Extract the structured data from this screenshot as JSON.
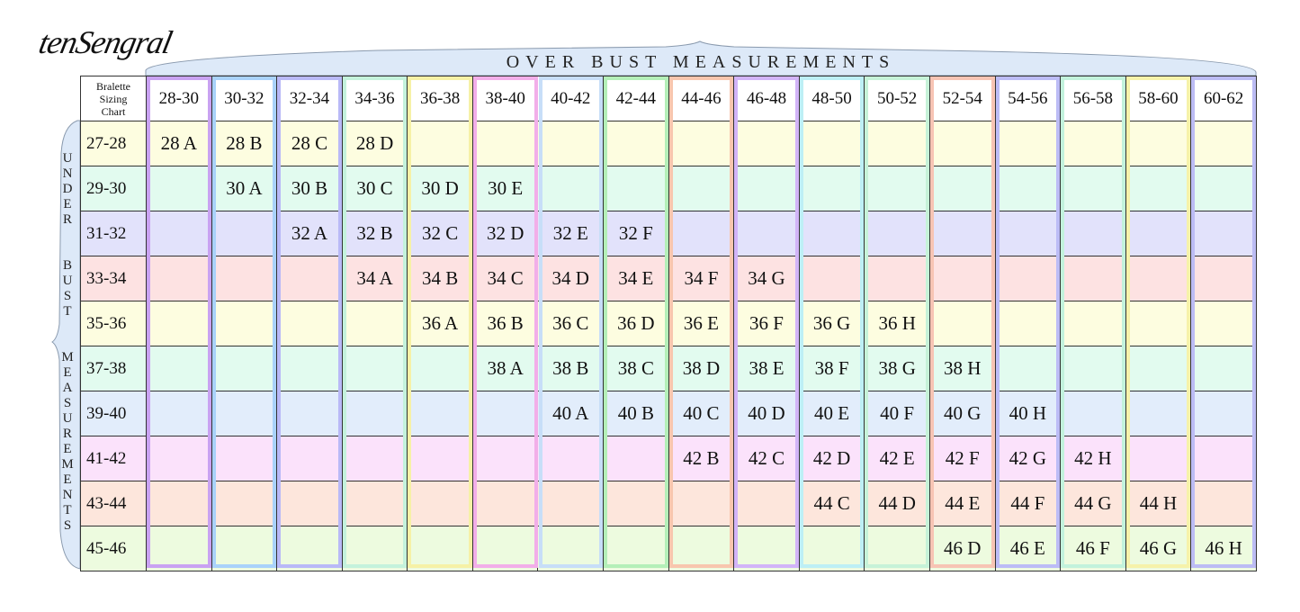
{
  "logo": "tenSengral",
  "over_label": "OVER BUST MEASUREMENTS",
  "under_label": "UNDER  BUST  MEASUREMENTS",
  "corner_label": [
    "Bralette",
    "Sizing",
    "Chart"
  ],
  "columns": [
    "28-30",
    "30-32",
    "32-34",
    "34-36",
    "36-38",
    "38-40",
    "40-42",
    "42-44",
    "44-46",
    "46-48",
    "48-50",
    "50-52",
    "52-54",
    "54-56",
    "56-58",
    "58-60",
    "60-62"
  ],
  "column_colors": [
    "#c9a2f2",
    "#a9d2fa",
    "#b9b9f7",
    "#c4f2dc",
    "#f6f1a6",
    "#f2aee9",
    "#c7def8",
    "#b4efb8",
    "#f8c6ae",
    "#d2b4f8",
    "#bdeff5",
    "#c6f2d8",
    "#f7c4b4",
    "#bcbcf6",
    "#c2f2dc",
    "#f6f2aa",
    "#bcbcf4"
  ],
  "rows": [
    {
      "label": "27-28",
      "color": "#fdfde0",
      "cells": [
        "28 A",
        "28 B",
        "28 C",
        "28 D",
        "",
        "",
        "",
        "",
        "",
        "",
        "",
        "",
        "",
        "",
        "",
        "",
        ""
      ]
    },
    {
      "label": "29-30",
      "color": "#e2fbef",
      "cells": [
        "",
        "30 A",
        "30 B",
        "30 C",
        "30 D",
        "30 E",
        "",
        "",
        "",
        "",
        "",
        "",
        "",
        "",
        "",
        "",
        ""
      ]
    },
    {
      "label": "31-32",
      "color": "#e2e2fb",
      "cells": [
        "",
        "",
        "32 A",
        "32 B",
        "32 C",
        "32 D",
        "32 E",
        "32 F",
        "",
        "",
        "",
        "",
        "",
        "",
        "",
        "",
        ""
      ]
    },
    {
      "label": "33-34",
      "color": "#fde2e2",
      "cells": [
        "",
        "",
        "",
        "34 A",
        "34 B",
        "34 C",
        "34 D",
        "34 E",
        "34 F",
        "34 G",
        "",
        "",
        "",
        "",
        "",
        "",
        ""
      ]
    },
    {
      "label": "35-36",
      "color": "#fdfde0",
      "cells": [
        "",
        "",
        "",
        "",
        "36 A",
        "36 B",
        "36 C",
        "36 D",
        "36 E",
        "36 F",
        "36 G",
        "36 H",
        "",
        "",
        "",
        "",
        ""
      ]
    },
    {
      "label": "37-38",
      "color": "#e2fbef",
      "cells": [
        "",
        "",
        "",
        "",
        "",
        "38 A",
        "38 B",
        "38 C",
        "38 D",
        "38 E",
        "38 F",
        "38 G",
        "38 H",
        "",
        "",
        "",
        ""
      ]
    },
    {
      "label": "39-40",
      "color": "#e2edfb",
      "cells": [
        "",
        "",
        "",
        "",
        "",
        "",
        "40 A",
        "40 B",
        "40 C",
        "40 D",
        "40 E",
        "40 F",
        "40 G",
        "40 H",
        "",
        "",
        ""
      ]
    },
    {
      "label": "41-42",
      "color": "#fbe2fb",
      "cells": [
        "",
        "",
        "",
        "",
        "",
        "",
        "",
        "",
        "42 B",
        "42 C",
        "42 D",
        "42 E",
        "42 F",
        "42 G",
        "42 H",
        "",
        ""
      ]
    },
    {
      "label": "43-44",
      "color": "#fde6dc",
      "cells": [
        "",
        "",
        "",
        "",
        "",
        "",
        "",
        "",
        "",
        "",
        "44 C",
        "44 D",
        "44 E",
        "44 F",
        "44 G",
        "44 H",
        ""
      ]
    },
    {
      "label": "45-46",
      "color": "#edfbdf",
      "cells": [
        "",
        "",
        "",
        "",
        "",
        "",
        "",
        "",
        "",
        "",
        "",
        "",
        "46 D",
        "46 E",
        "46 F",
        "46 G",
        "46 H"
      ]
    }
  ]
}
